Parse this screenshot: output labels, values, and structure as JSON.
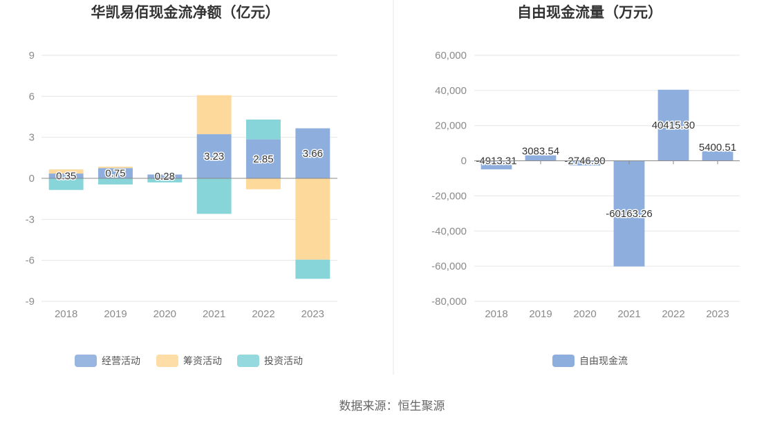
{
  "source": "数据来源：恒生聚源",
  "colors": {
    "operating": "#8eaedd",
    "financing": "#fed99c",
    "investing": "#87d5d9",
    "fcf": "#8eaedd",
    "grid": "#e6e6e6",
    "axis": "#888888"
  },
  "chart_data": [
    {
      "type": "bar",
      "stacked": true,
      "title": "华凯易佰现金流净额（亿元）",
      "categories": [
        "2018",
        "2019",
        "2020",
        "2021",
        "2022",
        "2023"
      ],
      "yticks": [
        "9",
        "6",
        "3",
        "0",
        "-3",
        "-6",
        "-9"
      ],
      "ylim": [
        -9,
        9
      ],
      "series": [
        {
          "name": "经营活动",
          "values": [
            0.35,
            0.75,
            0.28,
            3.23,
            2.85,
            3.66
          ]
        },
        {
          "name": "筹资活动",
          "values": [
            0.3,
            0.1,
            0.0,
            2.85,
            -0.8,
            -5.95
          ]
        },
        {
          "name": "投资活动",
          "values": [
            -0.85,
            -0.45,
            -0.3,
            -2.6,
            1.45,
            -1.4
          ]
        }
      ],
      "data_labels": [
        "0.35",
        "0.75",
        "0.28",
        "3.23",
        "2.85",
        "3.66"
      ],
      "legend": "bottom"
    },
    {
      "type": "bar",
      "title": "自由现金流量（万元）",
      "categories": [
        "2018",
        "2019",
        "2020",
        "2021",
        "2022",
        "2023"
      ],
      "yticks": [
        "60,000",
        "40,000",
        "20,000",
        "0",
        "-20,000",
        "-40,000",
        "-60,000",
        "-80,000"
      ],
      "ylim": [
        -80000,
        60000
      ],
      "series": [
        {
          "name": "自由现金流",
          "values": [
            -4913.31,
            3083.54,
            -2746.9,
            -60163.26,
            40415.3,
            5400.51
          ]
        }
      ],
      "data_labels": [
        "-4913.31",
        "3083.54",
        "-2746.90",
        "-60163.26",
        "40415.30",
        "5400.51"
      ],
      "legend": "bottom"
    }
  ]
}
